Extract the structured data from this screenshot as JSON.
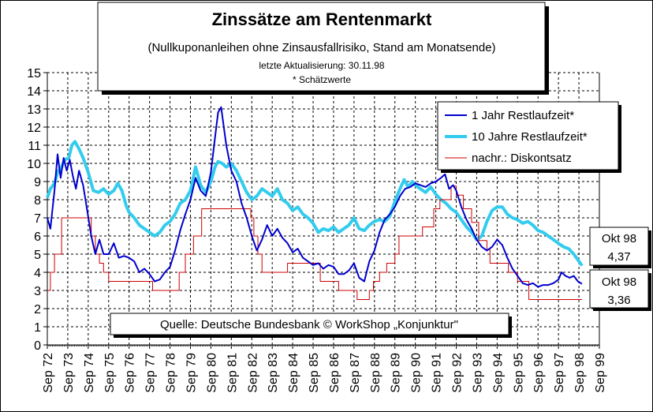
{
  "chart_data": {
    "type": "line",
    "title": "Zinssätze am Rentenmarkt",
    "subtitle": "(Nullkuponanleihen ohne Zinsausfallrisiko, Stand am Monatsende)",
    "update_note": "letzte Aktualisierung: 30.11.98",
    "estimate_note": "* Schätzwerte",
    "source": "Quelle: Deutsche Bundesbank ©  WorkShop „Konjunktur\"",
    "ylim": [
      0,
      15
    ],
    "y_ticks": [
      "0",
      "1",
      "2",
      "3",
      "4",
      "5",
      "6",
      "7",
      "8",
      "9",
      "10",
      "11",
      "12",
      "13",
      "14",
      "15"
    ],
    "x_start": 1972.75,
    "x_end": 1999.75,
    "x_ticks": [
      "Sep 72",
      "Sep 73",
      "Sep 74",
      "Sep 75",
      "Sep 76",
      "Sep 77",
      "Sep 78",
      "Sep 79",
      "Sep 80",
      "Sep 81",
      "Sep 82",
      "Sep 83",
      "Sep 84",
      "Sep 85",
      "Sep 86",
      "Sep 87",
      "Sep 88",
      "Sep 89",
      "Sep 90",
      "Sep 91",
      "Sep 92",
      "Sep 93",
      "Sep 94",
      "Sep 95",
      "Sep 96",
      "Sep 97",
      "Sep 98",
      "Sep 99"
    ],
    "grid": true,
    "legend_position": "top-right",
    "series": [
      {
        "name": "1 Jahr Restlaufzeit*",
        "color": "#0000cc",
        "points": [
          [
            1972.75,
            7.0
          ],
          [
            1972.9,
            6.4
          ],
          [
            1973.1,
            8.5
          ],
          [
            1973.25,
            10.5
          ],
          [
            1973.4,
            9.2
          ],
          [
            1973.55,
            10.3
          ],
          [
            1973.7,
            9.6
          ],
          [
            1973.85,
            10.2
          ],
          [
            1974.0,
            9.3
          ],
          [
            1974.15,
            8.6
          ],
          [
            1974.3,
            9.6
          ],
          [
            1974.5,
            8.8
          ],
          [
            1974.7,
            7.4
          ],
          [
            1974.9,
            6.0
          ],
          [
            1975.1,
            5.0
          ],
          [
            1975.3,
            5.8
          ],
          [
            1975.5,
            5.0
          ],
          [
            1975.75,
            5.0
          ],
          [
            1976.0,
            5.6
          ],
          [
            1976.25,
            4.8
          ],
          [
            1976.5,
            4.9
          ],
          [
            1976.75,
            4.8
          ],
          [
            1977.0,
            4.6
          ],
          [
            1977.25,
            4.0
          ],
          [
            1977.5,
            4.2
          ],
          [
            1977.75,
            3.9
          ],
          [
            1978.0,
            3.5
          ],
          [
            1978.25,
            3.6
          ],
          [
            1978.5,
            4.0
          ],
          [
            1978.75,
            4.3
          ],
          [
            1979.0,
            5.2
          ],
          [
            1979.25,
            6.3
          ],
          [
            1979.5,
            7.2
          ],
          [
            1979.75,
            8.0
          ],
          [
            1980.0,
            9.2
          ],
          [
            1980.25,
            8.5
          ],
          [
            1980.5,
            8.2
          ],
          [
            1980.75,
            9.5
          ],
          [
            1980.95,
            11.4
          ],
          [
            1981.1,
            12.8
          ],
          [
            1981.25,
            13.1
          ],
          [
            1981.5,
            11.0
          ],
          [
            1981.75,
            9.6
          ],
          [
            1982.0,
            9.0
          ],
          [
            1982.25,
            7.8
          ],
          [
            1982.5,
            7.0
          ],
          [
            1982.75,
            6.0
          ],
          [
            1983.0,
            5.2
          ],
          [
            1983.25,
            5.8
          ],
          [
            1983.5,
            6.6
          ],
          [
            1983.75,
            6.0
          ],
          [
            1984.0,
            6.4
          ],
          [
            1984.25,
            5.9
          ],
          [
            1984.5,
            5.6
          ],
          [
            1984.75,
            5.1
          ],
          [
            1985.0,
            5.3
          ],
          [
            1985.25,
            4.8
          ],
          [
            1985.5,
            4.6
          ],
          [
            1985.75,
            4.4
          ],
          [
            1986.0,
            4.5
          ],
          [
            1986.25,
            4.2
          ],
          [
            1986.5,
            4.4
          ],
          [
            1986.75,
            4.3
          ],
          [
            1987.0,
            3.9
          ],
          [
            1987.25,
            3.9
          ],
          [
            1987.5,
            4.1
          ],
          [
            1987.75,
            4.5
          ],
          [
            1988.0,
            3.7
          ],
          [
            1988.25,
            3.5
          ],
          [
            1988.5,
            4.6
          ],
          [
            1988.75,
            5.2
          ],
          [
            1989.0,
            6.2
          ],
          [
            1989.25,
            6.9
          ],
          [
            1989.5,
            7.2
          ],
          [
            1989.75,
            7.6
          ],
          [
            1990.0,
            8.2
          ],
          [
            1990.25,
            8.6
          ],
          [
            1990.5,
            8.7
          ],
          [
            1990.75,
            8.9
          ],
          [
            1991.0,
            8.8
          ],
          [
            1991.25,
            8.7
          ],
          [
            1991.5,
            8.9
          ],
          [
            1991.75,
            9.0
          ],
          [
            1992.0,
            9.2
          ],
          [
            1992.2,
            9.4
          ],
          [
            1992.4,
            8.6
          ],
          [
            1992.6,
            8.8
          ],
          [
            1992.75,
            8.5
          ],
          [
            1993.0,
            7.6
          ],
          [
            1993.25,
            6.9
          ],
          [
            1993.5,
            6.4
          ],
          [
            1993.75,
            5.8
          ],
          [
            1994.0,
            5.4
          ],
          [
            1994.25,
            5.2
          ],
          [
            1994.5,
            5.4
          ],
          [
            1994.75,
            5.8
          ],
          [
            1995.0,
            5.5
          ],
          [
            1995.25,
            4.8
          ],
          [
            1995.5,
            4.2
          ],
          [
            1995.75,
            3.8
          ],
          [
            1996.0,
            3.4
          ],
          [
            1996.25,
            3.3
          ],
          [
            1996.5,
            3.4
          ],
          [
            1996.75,
            3.2
          ],
          [
            1997.0,
            3.3
          ],
          [
            1997.25,
            3.3
          ],
          [
            1997.5,
            3.4
          ],
          [
            1997.75,
            3.6
          ],
          [
            1997.9,
            4.0
          ],
          [
            1998.1,
            3.8
          ],
          [
            1998.3,
            3.7
          ],
          [
            1998.5,
            3.8
          ],
          [
            1998.7,
            3.5
          ],
          [
            1998.9,
            3.36
          ]
        ]
      },
      {
        "name": "10 Jahre Restlaufzeit*",
        "color": "#33ccee",
        "points": [
          [
            1972.75,
            8.1
          ],
          [
            1972.9,
            8.6
          ],
          [
            1973.1,
            8.9
          ],
          [
            1973.25,
            9.5
          ],
          [
            1973.45,
            9.8
          ],
          [
            1973.6,
            10.2
          ],
          [
            1973.8,
            10.3
          ],
          [
            1973.95,
            11.0
          ],
          [
            1974.1,
            11.2
          ],
          [
            1974.3,
            10.8
          ],
          [
            1974.5,
            10.3
          ],
          [
            1974.75,
            9.5
          ],
          [
            1975.0,
            8.5
          ],
          [
            1975.25,
            8.4
          ],
          [
            1975.5,
            8.6
          ],
          [
            1975.75,
            8.3
          ],
          [
            1976.0,
            8.5
          ],
          [
            1976.2,
            8.9
          ],
          [
            1976.4,
            8.5
          ],
          [
            1976.6,
            7.7
          ],
          [
            1976.75,
            7.3
          ],
          [
            1977.0,
            7.0
          ],
          [
            1977.25,
            6.6
          ],
          [
            1977.5,
            6.4
          ],
          [
            1977.75,
            6.2
          ],
          [
            1978.0,
            6.0
          ],
          [
            1978.25,
            6.2
          ],
          [
            1978.5,
            6.6
          ],
          [
            1978.75,
            6.8
          ],
          [
            1979.0,
            7.2
          ],
          [
            1979.25,
            7.8
          ],
          [
            1979.5,
            8.0
          ],
          [
            1979.75,
            8.5
          ],
          [
            1980.0,
            9.8
          ],
          [
            1980.25,
            8.8
          ],
          [
            1980.5,
            8.4
          ],
          [
            1980.75,
            9.0
          ],
          [
            1980.95,
            9.8
          ],
          [
            1981.1,
            10.1
          ],
          [
            1981.3,
            10.0
          ],
          [
            1981.5,
            9.8
          ],
          [
            1981.75,
            10.0
          ],
          [
            1982.0,
            9.6
          ],
          [
            1982.25,
            9.0
          ],
          [
            1982.5,
            8.4
          ],
          [
            1982.75,
            8.0
          ],
          [
            1983.0,
            8.2
          ],
          [
            1983.25,
            8.6
          ],
          [
            1983.5,
            8.4
          ],
          [
            1983.75,
            8.2
          ],
          [
            1984.0,
            8.6
          ],
          [
            1984.25,
            8.0
          ],
          [
            1984.5,
            7.8
          ],
          [
            1984.75,
            7.4
          ],
          [
            1985.0,
            7.6
          ],
          [
            1985.25,
            7.2
          ],
          [
            1985.5,
            7.0
          ],
          [
            1985.75,
            6.7
          ],
          [
            1986.0,
            6.2
          ],
          [
            1986.25,
            6.4
          ],
          [
            1986.5,
            6.3
          ],
          [
            1986.75,
            6.5
          ],
          [
            1987.0,
            6.2
          ],
          [
            1987.25,
            6.4
          ],
          [
            1987.5,
            6.6
          ],
          [
            1987.75,
            7.0
          ],
          [
            1988.0,
            6.4
          ],
          [
            1988.25,
            6.3
          ],
          [
            1988.5,
            6.6
          ],
          [
            1988.75,
            6.8
          ],
          [
            1989.0,
            6.9
          ],
          [
            1989.25,
            6.8
          ],
          [
            1989.5,
            7.1
          ],
          [
            1989.75,
            7.9
          ],
          [
            1990.0,
            8.6
          ],
          [
            1990.2,
            9.1
          ],
          [
            1990.4,
            8.7
          ],
          [
            1990.6,
            9.0
          ],
          [
            1990.75,
            8.8
          ],
          [
            1991.0,
            8.6
          ],
          [
            1991.25,
            8.4
          ],
          [
            1991.5,
            8.7
          ],
          [
            1991.75,
            8.3
          ],
          [
            1992.0,
            8.0
          ],
          [
            1992.25,
            7.8
          ],
          [
            1992.5,
            7.5
          ],
          [
            1992.75,
            7.3
          ],
          [
            1993.0,
            6.9
          ],
          [
            1993.25,
            6.5
          ],
          [
            1993.5,
            6.2
          ],
          [
            1993.75,
            5.8
          ],
          [
            1994.0,
            6.0
          ],
          [
            1994.25,
            6.8
          ],
          [
            1994.5,
            7.4
          ],
          [
            1994.75,
            7.6
          ],
          [
            1995.0,
            7.6
          ],
          [
            1995.25,
            7.2
          ],
          [
            1995.5,
            7.0
          ],
          [
            1995.75,
            6.9
          ],
          [
            1996.0,
            6.7
          ],
          [
            1996.25,
            6.8
          ],
          [
            1996.5,
            6.6
          ],
          [
            1996.75,
            6.3
          ],
          [
            1997.0,
            6.2
          ],
          [
            1997.25,
            6.0
          ],
          [
            1997.5,
            5.8
          ],
          [
            1997.75,
            5.6
          ],
          [
            1998.0,
            5.4
          ],
          [
            1998.25,
            5.3
          ],
          [
            1998.5,
            5.0
          ],
          [
            1998.75,
            4.6
          ],
          [
            1998.9,
            4.37
          ]
        ]
      },
      {
        "name": "nachr.: Diskontsatz",
        "color": "#cc0000",
        "step": true,
        "points": [
          [
            1972.75,
            3.0
          ],
          [
            1972.9,
            4.0
          ],
          [
            1973.1,
            5.0
          ],
          [
            1973.45,
            7.0
          ],
          [
            1974.9,
            6.0
          ],
          [
            1975.1,
            5.0
          ],
          [
            1975.3,
            4.5
          ],
          [
            1975.5,
            4.0
          ],
          [
            1975.75,
            3.5
          ],
          [
            1977.9,
            3.0
          ],
          [
            1979.2,
            4.0
          ],
          [
            1979.5,
            5.0
          ],
          [
            1979.9,
            6.0
          ],
          [
            1980.3,
            7.5
          ],
          [
            1982.7,
            7.0
          ],
          [
            1982.85,
            6.0
          ],
          [
            1983.05,
            5.0
          ],
          [
            1983.25,
            4.0
          ],
          [
            1984.5,
            4.5
          ],
          [
            1986.1,
            3.5
          ],
          [
            1987.0,
            3.0
          ],
          [
            1987.9,
            2.5
          ],
          [
            1988.5,
            3.0
          ],
          [
            1988.7,
            3.5
          ],
          [
            1989.0,
            4.0
          ],
          [
            1989.35,
            4.5
          ],
          [
            1989.75,
            5.0
          ],
          [
            1989.95,
            6.0
          ],
          [
            1991.1,
            6.5
          ],
          [
            1991.65,
            7.5
          ],
          [
            1991.95,
            8.0
          ],
          [
            1992.5,
            8.75
          ],
          [
            1992.75,
            8.25
          ],
          [
            1993.1,
            7.5
          ],
          [
            1993.5,
            6.75
          ],
          [
            1993.85,
            5.75
          ],
          [
            1994.25,
            5.25
          ],
          [
            1994.4,
            4.5
          ],
          [
            1995.3,
            4.0
          ],
          [
            1995.75,
            3.5
          ],
          [
            1996.3,
            2.5
          ],
          [
            1998.9,
            2.5
          ]
        ]
      }
    ],
    "end_labels": [
      {
        "month": "Okt 98",
        "value": "4,37"
      },
      {
        "month": "Okt 98",
        "value": "3,36"
      }
    ]
  }
}
